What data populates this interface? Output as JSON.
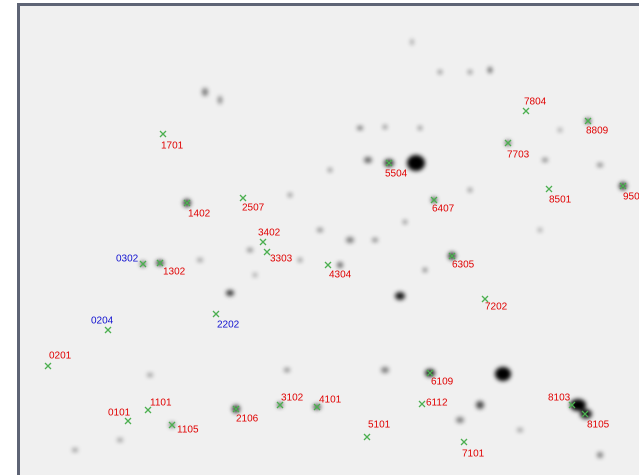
{
  "spots": [
    {
      "label": "7804",
      "color": "#e00000"
    },
    {
      "label": "8809",
      "color": "#e00000"
    },
    {
      "label": "1701",
      "color": "#e00000"
    },
    {
      "label": "7703",
      "color": "#e00000"
    },
    {
      "label": "5504",
      "color": "#e00000"
    },
    {
      "label": "8501",
      "color": "#e00000"
    },
    {
      "label": "950",
      "color": "#e00000"
    },
    {
      "label": "1402",
      "color": "#e00000"
    },
    {
      "label": "2507",
      "color": "#e00000"
    },
    {
      "label": "6407",
      "color": "#e00000"
    },
    {
      "label": "3402",
      "color": "#e00000"
    },
    {
      "label": "3303",
      "color": "#e00000"
    },
    {
      "label": "0302",
      "color": "#1010d0"
    },
    {
      "label": "1302",
      "color": "#e00000"
    },
    {
      "label": "4304",
      "color": "#e00000"
    },
    {
      "label": "6305",
      "color": "#e00000"
    },
    {
      "label": "7202",
      "color": "#e00000"
    },
    {
      "label": "0204",
      "color": "#1010d0"
    },
    {
      "label": "2202",
      "color": "#1010d0"
    },
    {
      "label": "0201",
      "color": "#e00000"
    },
    {
      "label": "6109",
      "color": "#e00000"
    },
    {
      "label": "1101",
      "color": "#e00000"
    },
    {
      "label": "0101",
      "color": "#e00000"
    },
    {
      "label": "1105",
      "color": "#e00000"
    },
    {
      "label": "2106",
      "color": "#e00000"
    },
    {
      "label": "3102",
      "color": "#e00000"
    },
    {
      "label": "4101",
      "color": "#e00000"
    },
    {
      "label": "6112",
      "color": "#e00000"
    },
    {
      "label": "5101",
      "color": "#e00000"
    },
    {
      "label": "7101",
      "color": "#e00000"
    },
    {
      "label": "8103",
      "color": "#e00000"
    },
    {
      "label": "8105",
      "color": "#e00000"
    }
  ]
}
